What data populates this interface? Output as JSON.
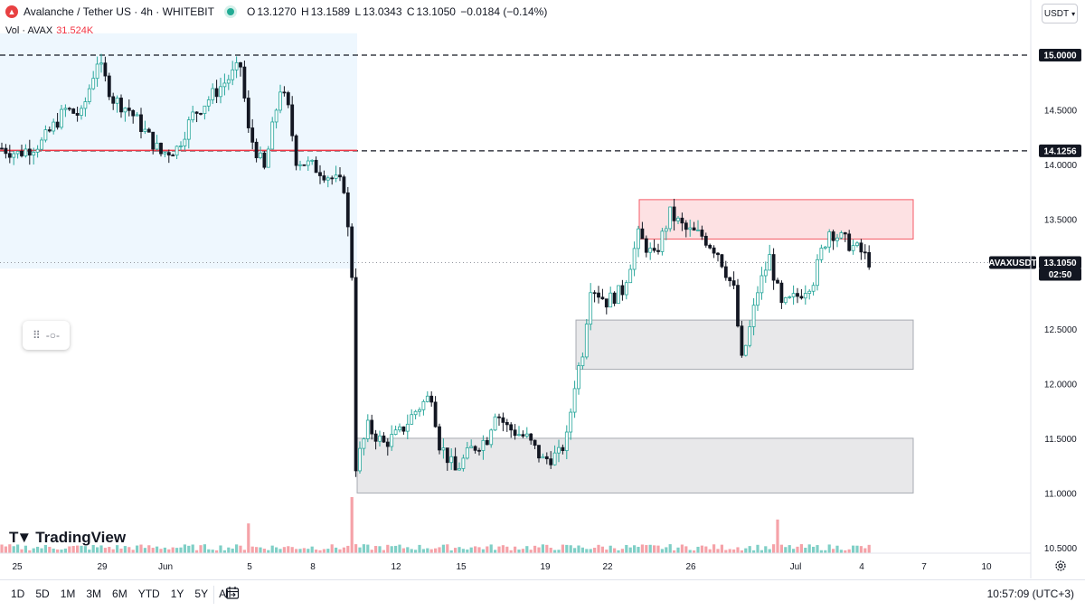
{
  "header": {
    "symbol_title": "Avalanche / Tether US · 4h · WHITEBIT",
    "o_label": "O",
    "o_value": "13.1270",
    "h_label": "H",
    "h_value": "13.1589",
    "l_label": "L",
    "l_value": "13.0343",
    "c_label": "C",
    "c_value": "13.1050",
    "change": "−0.0184 (−0.14%)"
  },
  "volume_legend": {
    "label": "Vol · AVAX",
    "value": "31.524K"
  },
  "currency_button": {
    "label": "USDT"
  },
  "watermark": {
    "text": "TradingView"
  },
  "toolbar": {
    "ranges": [
      "1D",
      "5D",
      "1M",
      "3M",
      "6M",
      "YTD",
      "1Y",
      "5Y",
      "All"
    ],
    "clock": "10:57:09 (UTC+3)"
  },
  "colors": {
    "up": "#26a69a",
    "down": "#131722",
    "vol_up": "#7fcfc6",
    "vol_down": "#f5a2a8",
    "level_line": "#f23645",
    "resistance_zone": "#f23645",
    "support_zone": "#9598a1",
    "highlight_zone": "#e3f2fd"
  },
  "chart_data": {
    "type": "candlestick",
    "symbol": "AVAXUSDT",
    "timeframe": "4h",
    "y_axis": {
      "range": [
        10.45,
        15.2
      ],
      "ticks": [
        "15.0000",
        "14.5000",
        "14.0000",
        "13.5000",
        "13.0000",
        "12.5000",
        "12.0000",
        "11.5000",
        "11.0000",
        "10.5000"
      ]
    },
    "x_axis": {
      "ticks": [
        "25",
        "29",
        "Jun",
        "5",
        "8",
        "12",
        "15",
        "19",
        "22",
        "26",
        "Jul",
        "4",
        "7",
        "10"
      ]
    },
    "price_labels": [
      {
        "text": "15.0000",
        "value": 15.0,
        "style": "dashed-black"
      },
      {
        "text": "14.1256",
        "value": 14.1256,
        "style": "dashed-black"
      },
      {
        "text": "AVAXUSDT",
        "value": 13.105,
        "style": "current-name"
      },
      {
        "text": "13.1050",
        "value": 13.105,
        "style": "current"
      },
      {
        "text": "02:50",
        "value": 13.105,
        "style": "countdown"
      }
    ],
    "horizontal_levels": [
      {
        "value": 15.0,
        "style": "dashed"
      },
      {
        "value": 14.1256,
        "style": "dashed"
      },
      {
        "value": 14.13,
        "style": "solid-red"
      },
      {
        "value": 13.105,
        "style": "dotted-current"
      }
    ],
    "zones": [
      {
        "name": "highlight",
        "from": "May 21",
        "to": "Jun 9",
        "y": [
          13.05,
          15.2
        ]
      },
      {
        "name": "resistance",
        "from": "Jun 23",
        "to": "Jul 5",
        "y": [
          13.32,
          13.68
        ]
      },
      {
        "name": "support-mid",
        "from": "Jun 20",
        "to": "Jul 5",
        "y": [
          12.13,
          12.58
        ]
      },
      {
        "name": "support-low",
        "from": "Jun 9",
        "to": "Jul 5",
        "y": [
          11.0,
          11.5
        ]
      }
    ],
    "price_path": [
      [
        0,
        14.15
      ],
      [
        4,
        14.1
      ],
      [
        10,
        14.2
      ],
      [
        16,
        14.5
      ],
      [
        20,
        14.45
      ],
      [
        24,
        14.95
      ],
      [
        28,
        14.6
      ],
      [
        32,
        14.5
      ],
      [
        36,
        14.3
      ],
      [
        40,
        14.1
      ],
      [
        44,
        14.15
      ],
      [
        48,
        14.45
      ],
      [
        52,
        14.6
      ],
      [
        56,
        14.75
      ],
      [
        60,
        14.9
      ],
      [
        62,
        14.3
      ],
      [
        66,
        13.95
      ],
      [
        70,
        14.7
      ],
      [
        72,
        14.5
      ],
      [
        74,
        14.05
      ],
      [
        80,
        13.95
      ],
      [
        86,
        13.8
      ],
      [
        88,
        13.0
      ],
      [
        89,
        11.25
      ],
      [
        92,
        11.6
      ],
      [
        96,
        11.45
      ],
      [
        100,
        11.55
      ],
      [
        104,
        11.75
      ],
      [
        108,
        11.9
      ],
      [
        110,
        11.45
      ],
      [
        114,
        11.2
      ],
      [
        118,
        11.4
      ],
      [
        122,
        11.5
      ],
      [
        124,
        11.75
      ],
      [
        127,
        11.6
      ],
      [
        132,
        11.5
      ],
      [
        136,
        11.3
      ],
      [
        140,
        11.35
      ],
      [
        142,
        11.5
      ],
      [
        144,
        12.0
      ],
      [
        146,
        12.3
      ],
      [
        148,
        12.9
      ],
      [
        152,
        12.75
      ],
      [
        156,
        12.85
      ],
      [
        160,
        13.35
      ],
      [
        164,
        13.15
      ],
      [
        168,
        13.55
      ],
      [
        172,
        13.4
      ],
      [
        176,
        13.35
      ],
      [
        180,
        13.2
      ],
      [
        184,
        12.85
      ],
      [
        186,
        12.2
      ],
      [
        188,
        12.5
      ],
      [
        190,
        12.85
      ],
      [
        193,
        13.15
      ],
      [
        196,
        12.7
      ],
      [
        200,
        12.8
      ],
      [
        204,
        12.95
      ],
      [
        206,
        13.2
      ],
      [
        208,
        13.4
      ],
      [
        212,
        13.3
      ],
      [
        216,
        13.2
      ],
      [
        218,
        13.12
      ]
    ],
    "volume": {
      "spike_indices": [
        62,
        88,
        195
      ],
      "max": 1.0
    }
  }
}
